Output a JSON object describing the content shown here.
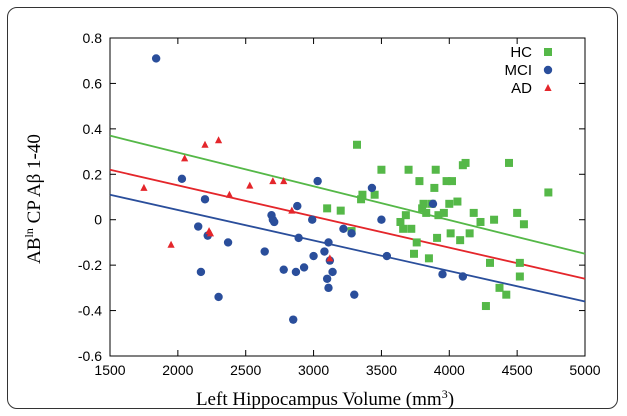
{
  "chart_data": {
    "type": "scatter",
    "xlabel": "Left Hippocampus Volume (mm",
    "xlabel_sup": "3",
    "xlabel_close": ")",
    "ylabel_main": "AB",
    "ylabel_sup": "ln",
    "ylabel_rest": " CP Aβ 1-40",
    "xlim": [
      1500,
      5000
    ],
    "ylim": [
      -0.6,
      0.8
    ],
    "xticks": [
      1500,
      2000,
      2500,
      3000,
      3500,
      4000,
      4500,
      5000
    ],
    "yticks": [
      -0.6,
      -0.4,
      -0.2,
      0,
      0.2,
      0.4,
      0.6,
      0.8
    ],
    "legend_position": "top-right",
    "series": [
      {
        "name": "HC",
        "marker": "square",
        "color": "#55b848",
        "line": [
          [
            1500,
            0.37
          ],
          [
            5000,
            -0.15
          ]
        ],
        "points": [
          [
            3320,
            0.33
          ],
          [
            3350,
            0.09
          ],
          [
            3360,
            0.11
          ],
          [
            3450,
            0.11
          ],
          [
            3500,
            0.22
          ],
          [
            3640,
            -0.01
          ],
          [
            3660,
            -0.04
          ],
          [
            3680,
            0.02
          ],
          [
            3700,
            0.22
          ],
          [
            3720,
            -0.04
          ],
          [
            3740,
            -0.15
          ],
          [
            3760,
            -0.1
          ],
          [
            3780,
            0.17
          ],
          [
            3800,
            0.05
          ],
          [
            3810,
            0.07
          ],
          [
            3830,
            0.03
          ],
          [
            3850,
            -0.17
          ],
          [
            3870,
            0.07
          ],
          [
            3890,
            0.14
          ],
          [
            3900,
            0.22
          ],
          [
            3910,
            -0.08
          ],
          [
            3920,
            0.02
          ],
          [
            3960,
            0.03
          ],
          [
            3980,
            0.17
          ],
          [
            4000,
            0.07
          ],
          [
            4010,
            -0.06
          ],
          [
            4020,
            0.17
          ],
          [
            4060,
            0.08
          ],
          [
            4080,
            -0.09
          ],
          [
            4100,
            0.24
          ],
          [
            4120,
            0.25
          ],
          [
            4150,
            -0.06
          ],
          [
            4180,
            0.03
          ],
          [
            4230,
            -0.01
          ],
          [
            4270,
            -0.38
          ],
          [
            4300,
            -0.19
          ],
          [
            4330,
            0.0
          ],
          [
            4370,
            -0.3
          ],
          [
            4420,
            -0.33
          ],
          [
            4440,
            0.25
          ],
          [
            4500,
            0.03
          ],
          [
            4520,
            -0.19
          ],
          [
            4520,
            -0.25
          ],
          [
            4550,
            -0.02
          ],
          [
            4730,
            0.12
          ],
          [
            3100,
            0.05
          ],
          [
            3200,
            0.04
          ],
          [
            3280,
            -0.05
          ]
        ]
      },
      {
        "name": "MCI",
        "marker": "circle",
        "color": "#2a4e9b",
        "line": [
          [
            1500,
            0.11
          ],
          [
            5000,
            -0.36
          ]
        ],
        "points": [
          [
            1840,
            0.71
          ],
          [
            2030,
            0.18
          ],
          [
            2150,
            -0.03
          ],
          [
            2170,
            -0.23
          ],
          [
            2200,
            0.09
          ],
          [
            2220,
            -0.07
          ],
          [
            2300,
            -0.34
          ],
          [
            2370,
            -0.1
          ],
          [
            2640,
            -0.14
          ],
          [
            2690,
            0.02
          ],
          [
            2700,
            0.0
          ],
          [
            2710,
            -0.01
          ],
          [
            2780,
            -0.22
          ],
          [
            2850,
            -0.44
          ],
          [
            2870,
            -0.23
          ],
          [
            2880,
            0.06
          ],
          [
            2890,
            -0.08
          ],
          [
            2930,
            -0.21
          ],
          [
            2990,
            0.0
          ],
          [
            3000,
            -0.16
          ],
          [
            3030,
            0.17
          ],
          [
            3080,
            -0.14
          ],
          [
            3100,
            -0.26
          ],
          [
            3110,
            -0.1
          ],
          [
            3110,
            -0.3
          ],
          [
            3120,
            -0.18
          ],
          [
            3140,
            -0.23
          ],
          [
            3220,
            -0.04
          ],
          [
            3280,
            -0.06
          ],
          [
            3300,
            -0.33
          ],
          [
            3430,
            0.14
          ],
          [
            3500,
            -0.0
          ],
          [
            3540,
            -0.16
          ],
          [
            3880,
            0.07
          ],
          [
            3950,
            -0.24
          ],
          [
            4100,
            -0.25
          ]
        ]
      },
      {
        "name": "AD",
        "marker": "triangle",
        "color": "#e4262b",
        "line": [
          [
            1500,
            0.22
          ],
          [
            5000,
            -0.26
          ]
        ],
        "points": [
          [
            1750,
            0.14
          ],
          [
            1950,
            -0.11
          ],
          [
            2050,
            0.27
          ],
          [
            2200,
            0.33
          ],
          [
            2230,
            -0.05
          ],
          [
            2240,
            -0.06
          ],
          [
            2300,
            0.35
          ],
          [
            2380,
            0.11
          ],
          [
            2530,
            0.15
          ],
          [
            2700,
            0.17
          ],
          [
            2780,
            0.17
          ],
          [
            2840,
            0.04
          ],
          [
            3120,
            -0.17
          ]
        ]
      }
    ]
  }
}
